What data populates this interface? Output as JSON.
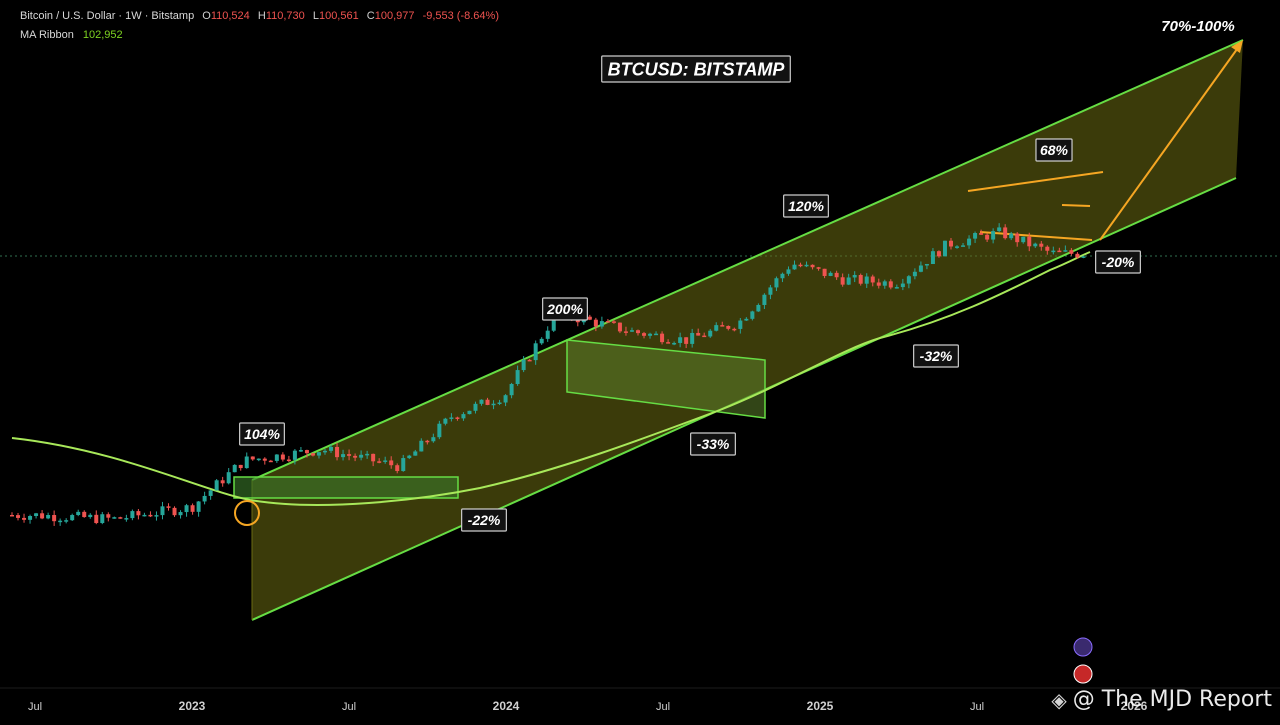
{
  "header": {
    "symbol_line": "Bitcoin / U.S. Dollar · 1W · Bitstamp",
    "ohlc": [
      {
        "key": "O",
        "value": "110,524"
      },
      {
        "key": "H",
        "value": "110,730"
      },
      {
        "key": "L",
        "value": "100,561"
      },
      {
        "key": "C",
        "value": "100,977"
      }
    ],
    "change": "-9,553 (-8.64%)",
    "ma_label": "MA Ribbon",
    "ma_value": "102,952"
  },
  "watermark": {
    "icon": "binance-diamond-icon",
    "text": "@ The MJD Report"
  },
  "chart_data": {
    "type": "candlestick",
    "title": "BTCUSD: BITSTAMP",
    "x_ticks": [
      "Jul",
      "2023",
      "Jul",
      "2024",
      "Jul",
      "2025",
      "Jul",
      "2026"
    ],
    "x_range": [
      "2022-06",
      "2026-02"
    ],
    "y_scale": "log",
    "y_range": [
      10000,
      220000
    ],
    "grid": false,
    "colors": {
      "background": "#000000",
      "up": "#26a69a",
      "down": "#ef5350",
      "channel_line": "#66dd44",
      "channel_fill": "#6b6b12",
      "ma_line": "#a8e85a",
      "projection": "#f5a623",
      "label_bg": "#111111",
      "label_border": "#cccccc"
    },
    "annotations": [
      "104%",
      "-22%",
      "200%",
      "-33%",
      "120%",
      "-32%",
      "68%",
      "-20%",
      "70%-100%"
    ],
    "price_approx": {
      "dates": [
        "2022-07",
        "2022-10",
        "2023-01",
        "2023-03",
        "2023-06",
        "2023-09",
        "2023-11",
        "2024-01",
        "2024-03",
        "2024-06",
        "2024-08",
        "2024-10",
        "2024-12",
        "2025-02",
        "2025-04",
        "2025-06",
        "2025-08",
        "2025-10"
      ],
      "close": [
        20000,
        19500,
        21000,
        28000,
        30000,
        27000,
        37000,
        42000,
        70000,
        62000,
        59000,
        66000,
        95000,
        86000,
        84000,
        107000,
        115000,
        100977
      ]
    },
    "ma_ribbon_value": 102952
  }
}
